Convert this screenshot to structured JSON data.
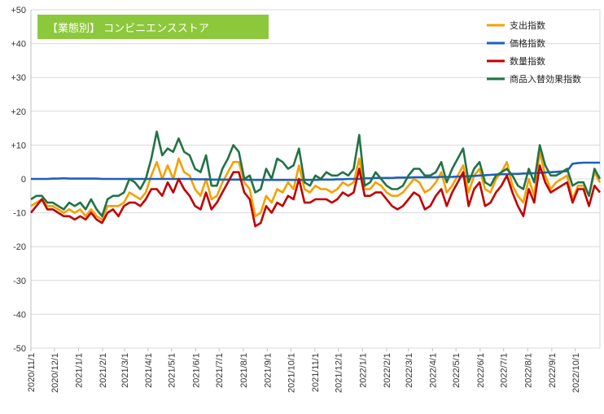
{
  "chart_data": {
    "type": "line",
    "title": "【業態別】 コンビニエンスストア",
    "title_bg_color": "#8cc83c",
    "ylim": [
      -50,
      50
    ],
    "yticks": [
      50,
      40,
      30,
      20,
      10,
      0,
      -10,
      -20,
      -30,
      -40,
      -50
    ],
    "ytick_labels": [
      "+50",
      "+40",
      "+30",
      "+20",
      "+10",
      "0",
      "-10",
      "-20",
      "-30",
      "-40",
      "-50"
    ],
    "grid": "horizontal",
    "legend_position": "top-right",
    "x_labels": [
      "2020/11/1",
      "2020/12/1",
      "2021/1/1",
      "2021/2/1",
      "2021/3/1",
      "2021/4/1",
      "2021/5/1",
      "2021/6/1",
      "2021/7/1",
      "2021/8/1",
      "2021/9/1",
      "2021/10/1",
      "2021/11/1",
      "2021/12/1",
      "2022/1/1",
      "2022/2/1",
      "2022/3/1",
      "2022/4/1",
      "2022/5/1",
      "2022/6/1",
      "2022/7/1",
      "2022/8/1",
      "2022/9/1",
      "2022/10/1"
    ],
    "x_label_weeks": [
      0,
      4.3,
      8.7,
      13.1,
      17.1,
      21.4,
      25.7,
      30.1,
      34.4,
      38.8,
      43.2,
      47.5,
      51.9,
      56.2,
      60.6,
      65.0,
      69.0,
      73.4,
      77.7,
      82.1,
      86.4,
      90.8,
      95.2,
      99.5
    ],
    "x_weeks_total": 104,
    "series": [
      {
        "name": "支出指数",
        "color": "#f5a000",
        "values": [
          -8,
          -7,
          -6,
          -8,
          -8,
          -9,
          -10,
          -9,
          -10,
          -9,
          -11,
          -9,
          -11,
          -12,
          -8,
          -8,
          -8,
          -7,
          -4,
          -5,
          -6,
          -4,
          1,
          5,
          0,
          4,
          0,
          6,
          2,
          1,
          -3,
          -5,
          0,
          -6,
          -5,
          -1,
          2,
          5,
          5,
          -1,
          -3,
          -11,
          -10,
          -5,
          -7,
          -3,
          -4,
          -1,
          -3,
          4,
          -3,
          -4,
          -2,
          -3,
          -3,
          -4,
          -3,
          -1,
          -2,
          -1,
          6,
          -3,
          -3,
          -1,
          -2,
          -4,
          -5,
          -5,
          -4,
          -2,
          0,
          -1,
          -4,
          -3,
          -1,
          2,
          -4,
          -2,
          1,
          4,
          -4,
          1,
          3,
          -3,
          -4,
          0,
          2,
          5,
          -2,
          -5,
          -7,
          0,
          -5,
          8,
          1,
          -3,
          -1,
          0,
          1,
          -6,
          -2,
          -2,
          -5,
          2,
          -1
        ]
      },
      {
        "name": "価格指数",
        "color": "#1f5fbf",
        "values": [
          0,
          0,
          0,
          0,
          0.1,
          0.1,
          0.2,
          0.1,
          0.1,
          0.1,
          0.1,
          0.1,
          0.1,
          0,
          0,
          0,
          0,
          0,
          0,
          0,
          0,
          0,
          0,
          0,
          0,
          0,
          0,
          0,
          0,
          0,
          -0.1,
          -0.1,
          -0.1,
          -0.2,
          -0.2,
          -0.2,
          -0.2,
          -0.2,
          -0.2,
          -0.2,
          -0.3,
          -0.3,
          -0.3,
          -0.3,
          -0.3,
          -0.3,
          -0.3,
          -0.3,
          -0.3,
          -0.3,
          -0.3,
          -0.3,
          -0.3,
          -0.2,
          -0.2,
          -0.2,
          -0.1,
          -0.1,
          0,
          0,
          0,
          0.2,
          0.2,
          0.3,
          0.3,
          0.3,
          0.3,
          0.4,
          0.4,
          0.4,
          0.5,
          0.5,
          0.5,
          0.5,
          0.5,
          0.6,
          0.6,
          0.6,
          0.7,
          0.7,
          0.8,
          0.9,
          1.0,
          1.1,
          1.2,
          1.3,
          1.4,
          1.4,
          1.5,
          1.5,
          1.6,
          1.6,
          1.7,
          1.8,
          1.9,
          2.0,
          2.1,
          2.2,
          2.3,
          4.5,
          4.7,
          4.8,
          4.8,
          4.8,
          4.8
        ]
      },
      {
        "name": "数量指数",
        "color": "#c00000",
        "values": [
          -10,
          -8,
          -6,
          -9,
          -9,
          -10,
          -11,
          -11,
          -12,
          -11,
          -12,
          -10,
          -12,
          -13,
          -10,
          -9,
          -11,
          -8,
          -7,
          -7,
          -8,
          -6,
          -3,
          -3,
          -5,
          -1,
          -4,
          0,
          -3,
          -5,
          -8,
          -9,
          -4,
          -9,
          -7,
          -4,
          -1,
          2,
          2,
          -4,
          -6,
          -14,
          -13,
          -8,
          -10,
          -7,
          -8,
          -5,
          -6,
          0,
          -7,
          -7,
          -6,
          -6,
          -6,
          -7,
          -6,
          -4,
          -5,
          -4,
          3,
          -5,
          -5,
          -4,
          -4,
          -6,
          -8,
          -9,
          -8,
          -6,
          -4,
          -5,
          -9,
          -8,
          -5,
          -3,
          -8,
          -4,
          -1,
          2,
          -8,
          -3,
          -1,
          -8,
          -7,
          -4,
          -2,
          1,
          -4,
          -8,
          -11,
          -3,
          -7,
          4,
          -1,
          -4,
          -3,
          -2,
          -1,
          -7,
          -3,
          -3,
          -8,
          -2,
          -4
        ]
      },
      {
        "name": "商品入替効果指数",
        "color": "#217346",
        "values": [
          -6,
          -5,
          -5,
          -7,
          -7,
          -8,
          -9,
          -7,
          -8,
          -7,
          -9,
          -6,
          -9,
          -11,
          -6,
          -5,
          -5,
          -4,
          0,
          -1,
          -3,
          0,
          6,
          14,
          7,
          9,
          8,
          12,
          8,
          7,
          3,
          2,
          7,
          -2,
          -2,
          3,
          6,
          10,
          8,
          0,
          1,
          -4,
          -3,
          3,
          0,
          6,
          5,
          3,
          4,
          9,
          -1,
          -2,
          1,
          0,
          2,
          1,
          1,
          2,
          1,
          3,
          13,
          -2,
          -1,
          2,
          0,
          -2,
          -3,
          -3,
          -2,
          1,
          3,
          3,
          1,
          1,
          2,
          5,
          -1,
          3,
          6,
          9,
          -1,
          3,
          5,
          -1,
          -2,
          1,
          2,
          3,
          1,
          -2,
          -3,
          3,
          -1,
          10,
          4,
          1,
          1,
          2,
          3,
          -2,
          -1,
          -1,
          -5,
          3,
          0
        ]
      }
    ]
  }
}
